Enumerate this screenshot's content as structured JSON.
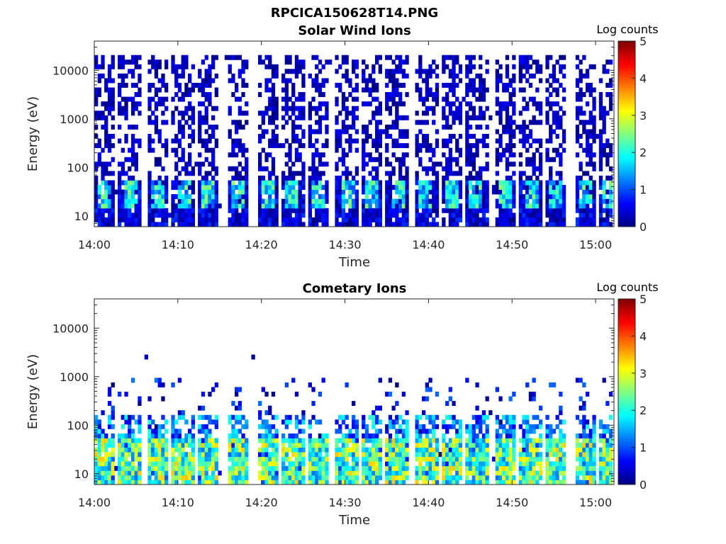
{
  "figure_title": "RPCICA150628T14.PNG",
  "chart_data": [
    {
      "type": "heatmap",
      "title": "Solar Wind Ions",
      "xlabel": "Time",
      "ylabel": "Energy (eV)",
      "x_range": [
        "14:00",
        "15:02"
      ],
      "x_ticks": [
        "14:00",
        "14:10",
        "14:20",
        "14:30",
        "14:40",
        "14:50",
        "15:00"
      ],
      "y_scale": "log",
      "y_range": [
        6,
        40000
      ],
      "y_ticks": [
        "10",
        "100",
        "1000",
        "10000"
      ],
      "colorbar": {
        "label": "Log counts",
        "range": [
          0,
          5
        ],
        "ticks": [
          "0",
          "1",
          "2",
          "3",
          "4",
          "5"
        ],
        "colormap": "jet"
      },
      "sweep_times_min": [
        1,
        4,
        7.5,
        10.5,
        13.5,
        17,
        20.5,
        23.5,
        26.5,
        30,
        33,
        36,
        39.5,
        42.5,
        45.5,
        49,
        52,
        55,
        58.5,
        61.5
      ],
      "pattern": "broadband sweeps up to ~20000 eV with log counts 0-1; peak log counts ~2.5 near 20-40 eV"
    },
    {
      "type": "heatmap",
      "title": "Cometary Ions",
      "xlabel": "Time",
      "ylabel": "Energy (eV)",
      "x_range": [
        "14:00",
        "15:02"
      ],
      "x_ticks": [
        "14:00",
        "14:10",
        "14:20",
        "14:30",
        "14:40",
        "14:50",
        "15:00"
      ],
      "y_scale": "log",
      "y_range": [
        6,
        40000
      ],
      "y_ticks": [
        "10",
        "100",
        "1000",
        "10000"
      ],
      "colorbar": {
        "label": "Log counts",
        "range": [
          0,
          5
        ],
        "ticks": [
          "0",
          "1",
          "2",
          "3",
          "4",
          "5"
        ],
        "colormap": "jet"
      },
      "sweep_times_min": [
        1,
        4,
        7.5,
        10.5,
        13.5,
        17,
        20.5,
        23.5,
        26.5,
        30,
        33,
        36,
        39.5,
        42.5,
        45.5,
        49,
        52,
        55,
        58.5,
        61.5
      ],
      "pattern": "low-energy ions 10-100 eV with log counts up to ~3.5; tails reaching ~1000 eV"
    }
  ]
}
